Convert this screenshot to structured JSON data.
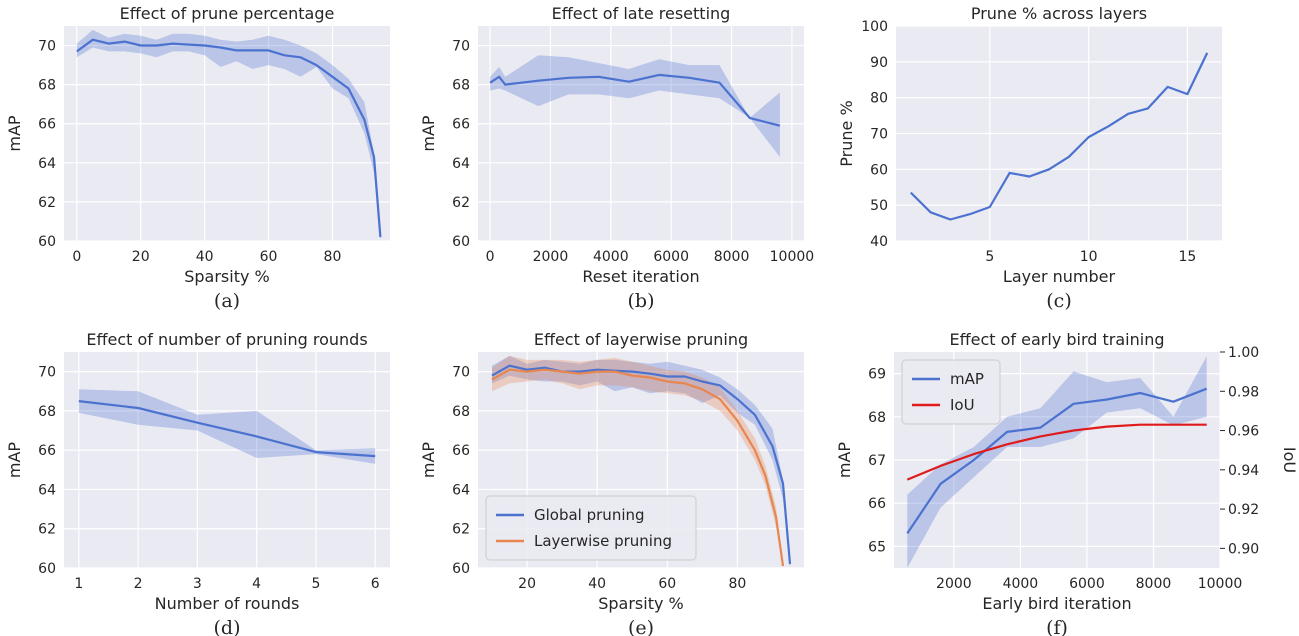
{
  "chart_data": [
    {
      "id": "a",
      "type": "line",
      "title": "Effect of prune percentage",
      "xlabel": "Sparsity %",
      "ylabel": "mAP",
      "caption": "(a)",
      "xlim": [
        -4,
        98
      ],
      "ylim": [
        60,
        71
      ],
      "xticks": [
        0,
        20,
        40,
        60,
        80
      ],
      "yticks": [
        60,
        62,
        64,
        66,
        68,
        70
      ],
      "grid": true,
      "series": [
        {
          "color": "#4c72d0",
          "x": [
            0,
            5,
            10,
            15,
            20,
            25,
            30,
            35,
            40,
            45,
            50,
            55,
            60,
            65,
            70,
            75,
            80,
            85,
            90,
            93,
            95
          ],
          "y": [
            69.7,
            70.3,
            70.1,
            70.2,
            70.0,
            70.0,
            70.1,
            70.05,
            70.0,
            69.9,
            69.75,
            69.75,
            69.75,
            69.5,
            69.4,
            69.0,
            68.4,
            67.8,
            66.2,
            64.3,
            60.2
          ],
          "y_lower": [
            69.4,
            69.9,
            69.7,
            69.7,
            69.6,
            69.4,
            69.7,
            69.7,
            69.5,
            68.9,
            69.2,
            68.8,
            69.0,
            68.8,
            68.4,
            68.9,
            67.8,
            67.3,
            65.5,
            63.5,
            60.0
          ],
          "y_upper": [
            70.1,
            70.8,
            70.4,
            70.6,
            70.5,
            70.3,
            70.6,
            70.6,
            70.5,
            70.3,
            70.2,
            70.3,
            70.5,
            70.3,
            70.0,
            69.6,
            69.0,
            68.3,
            67.1,
            64.5,
            60.4
          ]
        }
      ]
    },
    {
      "id": "b",
      "type": "line",
      "title": "Effect of late resetting",
      "xlabel": "Reset iteration",
      "ylabel": "mAP",
      "caption": "(b)",
      "xlim": [
        -400,
        10400
      ],
      "ylim": [
        60,
        71
      ],
      "xticks": [
        0,
        2000,
        4000,
        6000,
        8000,
        10000
      ],
      "yticks": [
        60,
        62,
        64,
        66,
        68,
        70
      ],
      "grid": true,
      "series": [
        {
          "color": "#4c72d0",
          "x": [
            0,
            300,
            500,
            1600,
            2600,
            3600,
            4600,
            5600,
            6600,
            7600,
            8600,
            9600
          ],
          "y": [
            68.1,
            68.4,
            68.0,
            68.2,
            68.35,
            68.4,
            68.15,
            68.5,
            68.35,
            68.1,
            66.3,
            65.9
          ],
          "y_lower": [
            67.7,
            67.8,
            67.7,
            66.9,
            67.5,
            67.5,
            67.3,
            67.7,
            67.5,
            67.3,
            66.3,
            64.3
          ],
          "y_upper": [
            68.4,
            68.9,
            68.4,
            69.5,
            69.4,
            69.1,
            68.8,
            69.3,
            69.0,
            69.0,
            66.3,
            67.6
          ]
        }
      ]
    },
    {
      "id": "c",
      "type": "line",
      "title": "Prune % across layers",
      "xlabel": "Layer number",
      "ylabel": "Prune %",
      "caption": "(c)",
      "xlim": [
        0.25,
        16.75
      ],
      "ylim": [
        40,
        100
      ],
      "xticks": [
        5,
        10,
        15
      ],
      "yticks": [
        40,
        50,
        60,
        70,
        80,
        90,
        100
      ],
      "grid": true,
      "series": [
        {
          "color": "#4c72d0",
          "x": [
            1,
            2,
            3,
            4,
            5,
            6,
            7,
            8,
            9,
            10,
            11,
            12,
            13,
            14,
            15,
            16
          ],
          "y": [
            53.5,
            48,
            46,
            47.5,
            49.5,
            59,
            58,
            60,
            63.5,
            69,
            72,
            75.5,
            77,
            83,
            81,
            92.5
          ]
        }
      ]
    },
    {
      "id": "d",
      "type": "line",
      "title": "Effect of number of pruning rounds",
      "xlabel": "Number of rounds",
      "ylabel": "mAP",
      "caption": "(d)",
      "xlim": [
        0.75,
        6.25
      ],
      "ylim": [
        60,
        71
      ],
      "xticks": [
        1,
        2,
        3,
        4,
        5,
        6
      ],
      "yticks": [
        60,
        62,
        64,
        66,
        68,
        70
      ],
      "grid": true,
      "series": [
        {
          "color": "#4c72d0",
          "x": [
            1,
            2,
            3,
            4,
            5,
            6
          ],
          "y": [
            68.5,
            68.15,
            67.4,
            66.7,
            65.9,
            65.7
          ],
          "y_lower": [
            67.9,
            67.3,
            67.0,
            65.6,
            65.8,
            65.3
          ],
          "y_upper": [
            69.1,
            69.0,
            67.8,
            68.0,
            66.0,
            66.1
          ]
        }
      ]
    },
    {
      "id": "e",
      "type": "line",
      "title": "Effect of layerwise pruning",
      "xlabel": "Sparsity %",
      "ylabel": "mAP",
      "caption": "(e)",
      "xlim": [
        6,
        99
      ],
      "ylim": [
        60,
        71
      ],
      "xticks": [
        20,
        40,
        60,
        80
      ],
      "yticks": [
        60,
        62,
        64,
        66,
        68,
        70
      ],
      "grid": true,
      "legend": "lower-left",
      "series": [
        {
          "name": "Global pruning",
          "color": "#4c72d0",
          "x": [
            10,
            15,
            20,
            25,
            30,
            35,
            40,
            45,
            50,
            55,
            60,
            65,
            70,
            75,
            80,
            85,
            90,
            93,
            95
          ],
          "y": [
            69.8,
            70.3,
            70.1,
            70.2,
            70.0,
            70.0,
            70.1,
            70.05,
            70.0,
            69.9,
            69.75,
            69.75,
            69.5,
            69.3,
            68.6,
            67.8,
            66.2,
            64.3,
            60.2
          ],
          "y_lower": [
            69.4,
            69.8,
            69.6,
            69.5,
            69.5,
            69.3,
            69.5,
            69.0,
            69.2,
            68.9,
            69.0,
            68.9,
            68.4,
            68.8,
            67.9,
            67.3,
            65.5,
            63.5,
            60.0
          ],
          "y_upper": [
            70.3,
            70.8,
            70.4,
            70.6,
            70.5,
            70.4,
            70.6,
            70.6,
            70.5,
            70.4,
            70.5,
            70.3,
            70.1,
            69.7,
            69.1,
            68.3,
            67.1,
            64.5,
            60.4
          ]
        },
        {
          "name": "Layerwise pruning",
          "color": "#e8864f",
          "x": [
            10,
            15,
            20,
            25,
            30,
            35,
            40,
            45,
            50,
            55,
            60,
            65,
            70,
            75,
            80,
            85,
            88,
            91,
            93
          ],
          "y": [
            69.6,
            70.1,
            70.0,
            70.1,
            70.0,
            69.9,
            70.0,
            70.0,
            69.8,
            69.7,
            69.5,
            69.4,
            69.1,
            68.6,
            67.5,
            66.0,
            64.7,
            62.6,
            60.1
          ],
          "y_lower": [
            69.0,
            69.4,
            69.5,
            69.6,
            69.4,
            69.1,
            69.3,
            69.3,
            69.2,
            69.0,
            68.9,
            68.8,
            68.5,
            68.0,
            67.0,
            65.5,
            64.2,
            62.1,
            60.0
          ],
          "y_upper": [
            70.2,
            70.8,
            70.6,
            70.6,
            70.6,
            70.5,
            70.6,
            70.7,
            70.5,
            70.3,
            70.1,
            70.0,
            69.7,
            69.2,
            68.0,
            66.6,
            65.2,
            63.1,
            60.3
          ]
        }
      ]
    },
    {
      "id": "f",
      "type": "line",
      "title": "Effect of early bird training",
      "xlabel": "Early bird iteration",
      "ylabel": "mAP",
      "ylabel_right": "IoU",
      "caption": "(f)",
      "xlim": [
        200,
        10000
      ],
      "ylim": [
        64.5,
        69.5
      ],
      "ylim_right": [
        0.89,
        1.0
      ],
      "xticks": [
        2000,
        4000,
        6000,
        8000,
        10000
      ],
      "yticks": [
        65,
        66,
        67,
        68,
        69
      ],
      "yticks_right": [
        0.9,
        0.92,
        0.94,
        0.96,
        0.98,
        1.0
      ],
      "ytick_labels_right": [
        "0.90",
        "0.92",
        "0.94",
        "0.96",
        "0.98",
        "1.00"
      ],
      "grid": true,
      "legend": "upper-left",
      "series": [
        {
          "name": "mAP",
          "axis": "left",
          "color": "#4c72d0",
          "x": [
            600,
            1600,
            2600,
            3600,
            4600,
            5600,
            6600,
            7600,
            8600,
            9600
          ],
          "y": [
            65.3,
            66.45,
            67.0,
            67.65,
            67.75,
            68.3,
            68.4,
            68.55,
            68.35,
            68.65
          ],
          "y_lower": [
            64.5,
            65.9,
            66.6,
            67.3,
            67.3,
            67.5,
            68.1,
            68.2,
            67.8,
            68.0
          ],
          "y_upper": [
            66.2,
            66.9,
            67.3,
            68.0,
            68.2,
            69.05,
            68.8,
            68.9,
            68.0,
            69.4
          ]
        },
        {
          "name": "IoU",
          "axis": "right",
          "color": "#e01b1b",
          "x": [
            600,
            1600,
            2600,
            3600,
            4600,
            5600,
            6600,
            7600,
            8600,
            9600
          ],
          "y": [
            0.935,
            0.942,
            0.948,
            0.953,
            0.957,
            0.96,
            0.962,
            0.963,
            0.963,
            0.963
          ]
        }
      ]
    }
  ]
}
